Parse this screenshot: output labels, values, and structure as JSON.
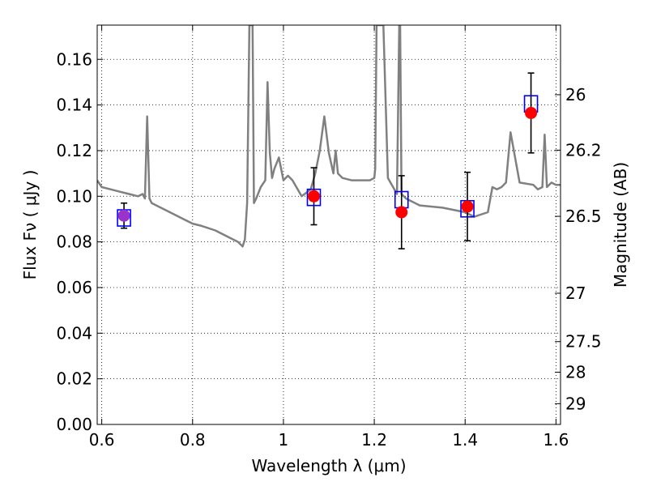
{
  "chart_data": {
    "type": "scatter",
    "xlabel": "Wavelength  λ (μm)",
    "ylabel": "Flux  Fν  ( μJy )",
    "y2label": "Magnitude (AB)",
    "xlim": [
      0.59,
      1.61
    ],
    "ylim": [
      0.0,
      0.175
    ],
    "x_ticks": [
      0.6,
      0.8,
      1.0,
      1.2,
      1.4,
      1.6
    ],
    "x_tick_labels": [
      "0.6",
      "0.8",
      "1",
      "1.2",
      "1.4",
      "1.6"
    ],
    "y_ticks": [
      0.0,
      0.02,
      0.04,
      0.06,
      0.08,
      0.1,
      0.12,
      0.14,
      0.16
    ],
    "y_tick_labels": [
      "0.00",
      "0.02",
      "0.04",
      "0.06",
      "0.08",
      "0.10",
      "0.12",
      "0.14",
      "0.16"
    ],
    "y2_ticks": [
      {
        "flux": 0.1445,
        "label": "26"
      },
      {
        "flux": 0.1202,
        "label": "26.2"
      },
      {
        "flux": 0.0912,
        "label": "26.5"
      },
      {
        "flux": 0.0575,
        "label": "27"
      },
      {
        "flux": 0.0363,
        "label": "27.5"
      },
      {
        "flux": 0.0229,
        "label": "28"
      },
      {
        "flux": 0.0091,
        "label": "29"
      }
    ],
    "grid": true,
    "series": [
      {
        "kind": "model-spectrum-line",
        "color": "#808080",
        "x": [
          0.59,
          0.6,
          0.62,
          0.64,
          0.66,
          0.68,
          0.69,
          0.695,
          0.7,
          0.705,
          0.71,
          0.73,
          0.75,
          0.78,
          0.8,
          0.82,
          0.85,
          0.88,
          0.9,
          0.91,
          0.915,
          0.92,
          0.925,
          0.928,
          0.932,
          0.935,
          0.94,
          0.95,
          0.96,
          0.965,
          0.97,
          0.975,
          0.98,
          0.99,
          1.0,
          1.01,
          1.02,
          1.04,
          1.06,
          1.07,
          1.08,
          1.09,
          1.1,
          1.11,
          1.115,
          1.12,
          1.13,
          1.15,
          1.17,
          1.19,
          1.2,
          1.202,
          1.205,
          1.21,
          1.215,
          1.22,
          1.23,
          1.25,
          1.255,
          1.257,
          1.26,
          1.27,
          1.3,
          1.35,
          1.4,
          1.42,
          1.45,
          1.46,
          1.47,
          1.48,
          1.49,
          1.5,
          1.52,
          1.55,
          1.56,
          1.57,
          1.575,
          1.58,
          1.59,
          1.6,
          1.61
        ],
        "y": [
          0.107,
          0.104,
          0.103,
          0.102,
          0.101,
          0.1,
          0.101,
          0.099,
          0.135,
          0.099,
          0.097,
          0.095,
          0.093,
          0.09,
          0.088,
          0.087,
          0.085,
          0.082,
          0.08,
          0.078,
          0.081,
          0.097,
          0.175,
          0.175,
          0.175,
          0.097,
          0.099,
          0.104,
          0.107,
          0.15,
          0.119,
          0.108,
          0.112,
          0.117,
          0.107,
          0.109,
          0.107,
          0.1,
          0.103,
          0.11,
          0.12,
          0.135,
          0.119,
          0.11,
          0.12,
          0.11,
          0.108,
          0.107,
          0.107,
          0.107,
          0.108,
          0.112,
          0.175,
          0.175,
          0.175,
          0.175,
          0.108,
          0.101,
          0.175,
          0.175,
          0.101,
          0.099,
          0.096,
          0.095,
          0.093,
          0.091,
          0.093,
          0.104,
          0.103,
          0.104,
          0.106,
          0.128,
          0.106,
          0.105,
          0.103,
          0.104,
          0.127,
          0.104,
          0.106,
          0.105,
          0.105
        ]
      },
      {
        "kind": "model-photometry",
        "marker": "open-square",
        "color": "#0000ff",
        "x": [
          0.649,
          1.067,
          1.26,
          1.405,
          1.545
        ],
        "y": [
          0.0905,
          0.0995,
          0.0985,
          0.0945,
          0.1405
        ]
      },
      {
        "kind": "observed-photometry",
        "marker": "filled-circle",
        "color": "#ff0000",
        "x": [
          0.649,
          1.067,
          1.26,
          1.405,
          1.545
        ],
        "y": [
          0.0915,
          0.1,
          0.093,
          0.0955,
          0.1365
        ],
        "yerr": [
          0.0055,
          0.0125,
          0.016,
          0.015,
          0.0175
        ],
        "first_point_color": "#9933cc"
      }
    ]
  }
}
